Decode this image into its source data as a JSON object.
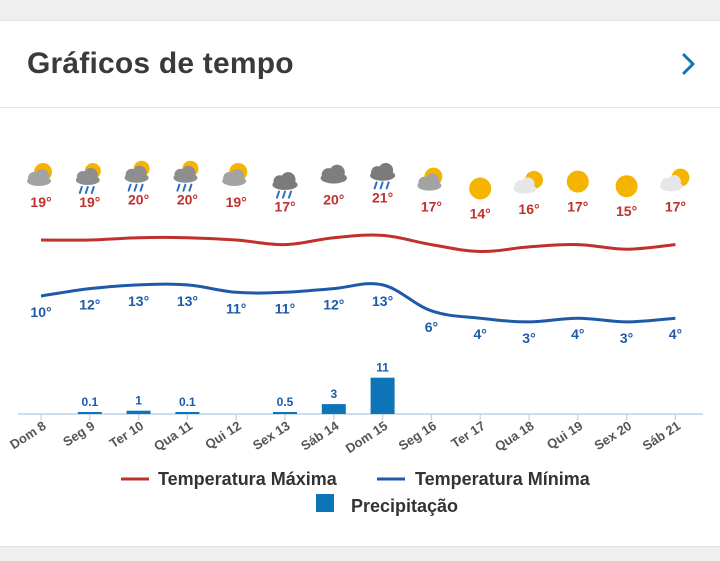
{
  "card": {
    "title": "Gráficos de tempo"
  },
  "colors": {
    "max": "#c0312e",
    "min": "#1e5aa8",
    "precip": "#0e74b8",
    "axis": "#bcd2e6",
    "label": "#555555",
    "sun": "#f5b400",
    "cloud": "#9a9a9a"
  },
  "chart_data": {
    "type": "line",
    "categories": [
      "Dom 8",
      "Seg 9",
      "Ter 10",
      "Qua 11",
      "Qui 12",
      "Sex 13",
      "Sáb 14",
      "Dom 15",
      "Seg 16",
      "Ter 17",
      "Qua 18",
      "Qui 19",
      "Sex 20",
      "Sáb 21"
    ],
    "weather_icons": [
      "partly-cloudy-icon",
      "rain-sun-icon",
      "rain-sun-icon",
      "rain-sun-icon",
      "partly-cloudy-icon",
      "rain-cloud-icon",
      "cloud-icon",
      "rain-cloud-icon",
      "partly-cloudy-icon",
      "sun-icon",
      "cloud-sun-icon",
      "sun-icon",
      "sun-icon",
      "cloud-sun-icon"
    ],
    "series": [
      {
        "name": "Temperatura Máxima",
        "values": [
          19,
          19,
          20,
          20,
          19,
          17,
          20,
          21,
          17,
          14,
          16,
          17,
          15,
          17
        ],
        "labels": [
          "19°",
          "19°",
          "20°",
          "20°",
          "19°",
          "17°",
          "20°",
          "21°",
          "17°",
          "14°",
          "16°",
          "17°",
          "15°",
          "17°"
        ]
      },
      {
        "name": "Temperatura Mínima",
        "values": [
          10,
          12,
          13,
          13,
          11,
          11,
          12,
          13,
          6,
          4,
          3,
          4,
          3,
          4
        ],
        "labels": [
          "10°",
          "12°",
          "13°",
          "13°",
          "11°",
          "11°",
          "12°",
          "13°",
          "6°",
          "4°",
          "3°",
          "4°",
          "3°",
          "4°"
        ]
      }
    ],
    "precipitation": {
      "name": "Precipitação",
      "values": [
        0,
        0.1,
        1,
        0.1,
        0,
        0.5,
        3,
        11,
        0,
        0,
        0,
        0,
        0,
        0
      ],
      "labels": [
        "",
        "0.1",
        "1",
        "0.1",
        "",
        "0.5",
        "3",
        "11",
        "",
        "",
        "",
        "",
        "",
        ""
      ]
    },
    "legend": [
      "Temperatura Máxima",
      "Temperatura Mínima",
      "Precipitação"
    ]
  }
}
